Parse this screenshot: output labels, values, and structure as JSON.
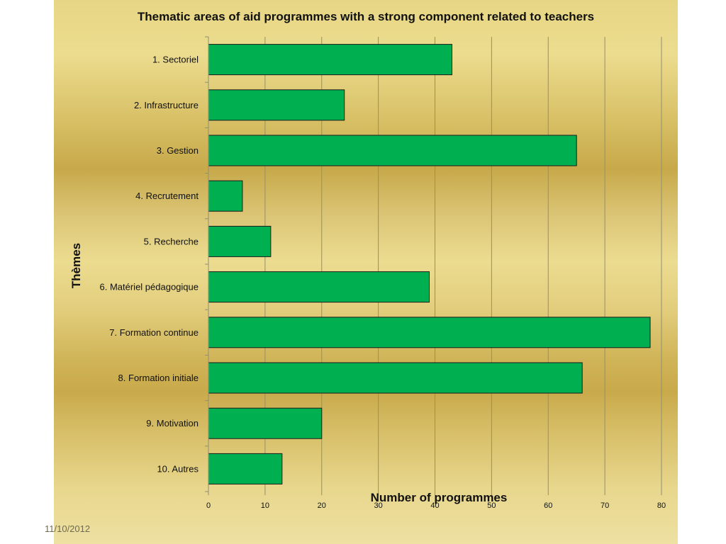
{
  "footer": {
    "date": "11/10/2012"
  },
  "colors": {
    "bar_fill": "#00b050",
    "bar_stroke": "#1a1a1a",
    "grid": "#8f8f7a"
  },
  "chart_data": {
    "type": "bar",
    "orientation": "horizontal",
    "title": "Thematic areas of aid programmes with a strong component related to teachers",
    "xlabel": "Number of programmes",
    "ylabel": "Thèmes",
    "categories": [
      "1. Sectoriel",
      "2. Infrastructure",
      "3. Gestion",
      "4. Recrutement",
      "5. Recherche",
      "6. Matériel pédagogique",
      "7. Formation continue",
      "8. Formation initiale",
      "9. Motivation",
      "10. Autres"
    ],
    "values": [
      43,
      24,
      65,
      6,
      11,
      39,
      78,
      66,
      20,
      13
    ],
    "xlim": [
      0,
      80
    ],
    "xticks": [
      "0",
      "10",
      "20",
      "30",
      "40",
      "50",
      "60",
      "70",
      "80"
    ],
    "grid": true,
    "legend": "none"
  }
}
